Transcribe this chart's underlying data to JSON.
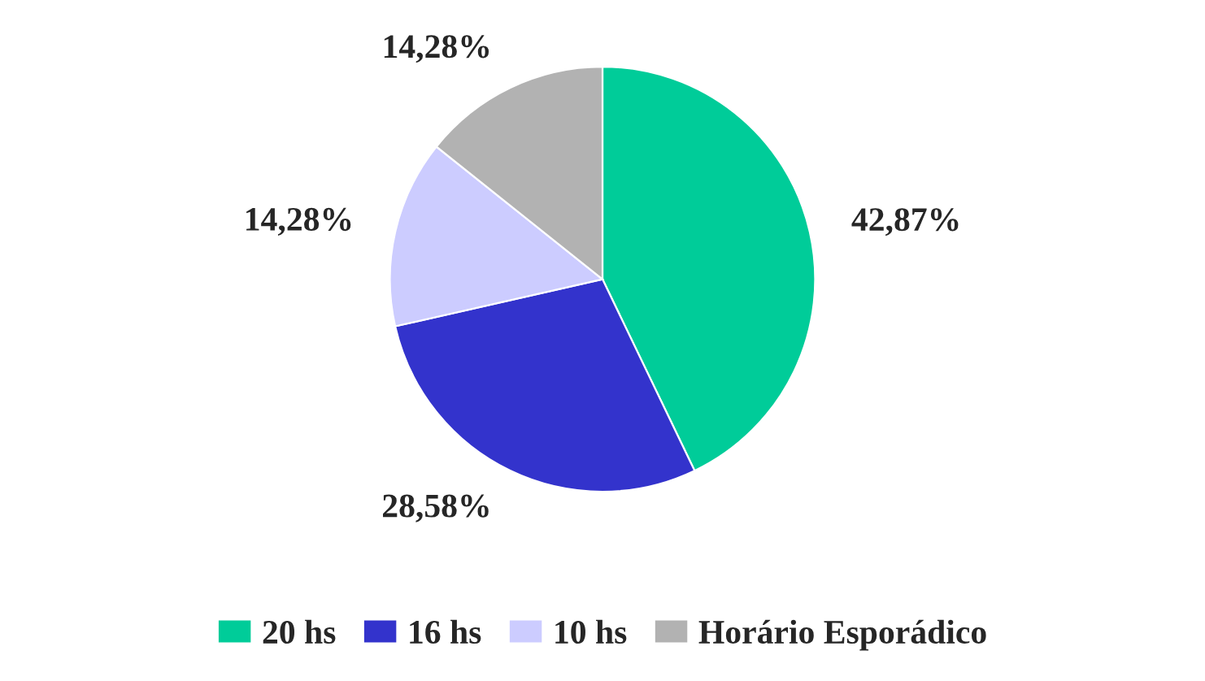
{
  "chart_data": {
    "type": "pie",
    "categories": [
      "20 hs",
      "16 hs",
      "10 hs",
      "Horário Esporádico"
    ],
    "values": [
      42.87,
      28.58,
      14.28,
      14.28
    ],
    "value_labels": [
      "42,87%",
      "28,58%",
      "14,28%",
      "14,28%"
    ],
    "colors": [
      "#00cc99",
      "#3333cc",
      "#ccccff",
      "#b2b2b2"
    ],
    "legend": "bottom"
  }
}
